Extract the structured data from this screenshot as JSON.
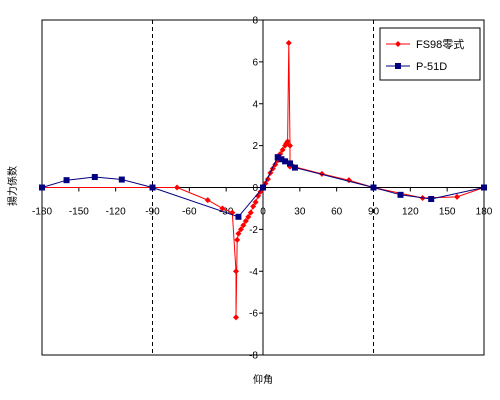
{
  "chart_data": {
    "type": "line",
    "xlabel": "仰角",
    "ylabel": "揚力係数",
    "xlim": [
      -180,
      180
    ],
    "ylim": [
      -8,
      8
    ],
    "x_ticks": [
      -180,
      -150,
      -120,
      -90,
      -60,
      -30,
      0,
      30,
      60,
      90,
      120,
      150,
      180
    ],
    "y_ticks": [
      -8,
      -6,
      -4,
      -2,
      0,
      2,
      4,
      6,
      8
    ],
    "dashed_verticals": [
      -90,
      90
    ],
    "legend_position": "top-right",
    "series": [
      {
        "name": "FS98零式",
        "color": "#ff0000",
        "marker": "diamond",
        "points": [
          [
            -180,
            0
          ],
          [
            -90,
            0
          ],
          [
            -70,
            0
          ],
          [
            -45,
            -0.6
          ],
          [
            -33,
            -1.0
          ],
          [
            -25,
            -1.2
          ],
          [
            -22,
            -4.0
          ],
          [
            -22,
            -6.2
          ],
          [
            -21,
            -2.5
          ],
          [
            -20,
            -2.2
          ],
          [
            -18,
            -2.0
          ],
          [
            -16,
            -1.8
          ],
          [
            -14,
            -1.6
          ],
          [
            -12,
            -1.4
          ],
          [
            -10,
            -1.2
          ],
          [
            -8,
            -0.9
          ],
          [
            -6,
            -0.7
          ],
          [
            -4,
            -0.4
          ],
          [
            -2,
            -0.2
          ],
          [
            0,
            0
          ],
          [
            2,
            0.2
          ],
          [
            4,
            0.4
          ],
          [
            6,
            0.7
          ],
          [
            8,
            0.9
          ],
          [
            10,
            1.1
          ],
          [
            12,
            1.3
          ],
          [
            14,
            1.6
          ],
          [
            16,
            1.8
          ],
          [
            18,
            2.0
          ],
          [
            19,
            2.1
          ],
          [
            20,
            2.2
          ],
          [
            21,
            6.9
          ],
          [
            22,
            2.0
          ],
          [
            22,
            1.0
          ],
          [
            25,
            1.0
          ],
          [
            48,
            0.65
          ],
          [
            70,
            0.35
          ],
          [
            90,
            0
          ],
          [
            130,
            -0.5
          ],
          [
            158,
            -0.45
          ],
          [
            180,
            0
          ]
        ]
      },
      {
        "name": "P-51D",
        "color": "#000080",
        "marker": "square",
        "points": [
          [
            -180,
            0
          ],
          [
            -160,
            0.35
          ],
          [
            -137,
            0.5
          ],
          [
            -115,
            0.38
          ],
          [
            -90,
            0
          ],
          [
            -20,
            -1.4
          ],
          [
            0,
            0
          ],
          [
            12,
            1.45
          ],
          [
            15,
            1.35
          ],
          [
            18,
            1.25
          ],
          [
            22,
            1.15
          ],
          [
            26,
            0.95
          ],
          [
            90,
            0
          ],
          [
            112,
            -0.35
          ],
          [
            137,
            -0.55
          ],
          [
            180,
            0
          ]
        ]
      }
    ]
  }
}
